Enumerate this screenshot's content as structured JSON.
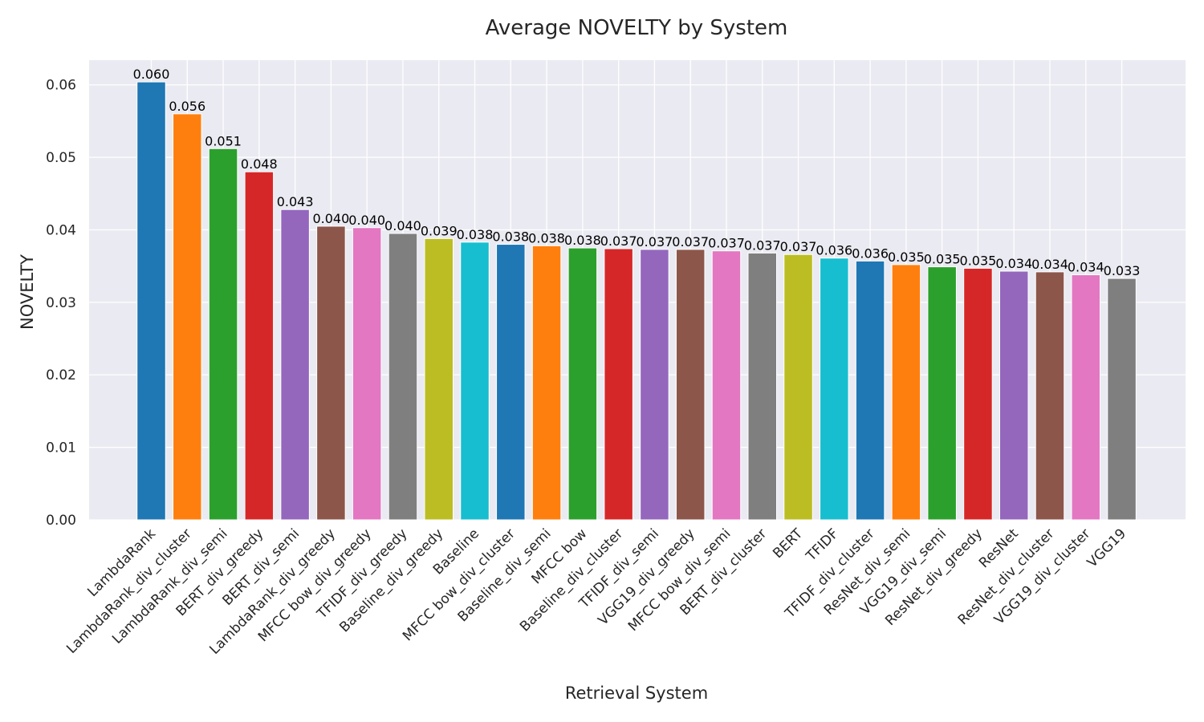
{
  "chart_data": {
    "type": "bar",
    "title": "Average NOVELTY by System",
    "xlabel": "Retrieval System",
    "ylabel": "NOVELTY",
    "ylim": [
      0,
      0.0634
    ],
    "yticks": [
      "0.00",
      "0.01",
      "0.02",
      "0.03",
      "0.04",
      "0.05",
      "0.06"
    ],
    "grid": true,
    "legend": "none",
    "categories": [
      "LambdaRank",
      "LambdaRank_div_cluster",
      "LambdaRank_div_semi",
      "BERT_div_greedy",
      "BERT_div_semi",
      "LambdaRank_div_greedy",
      "MFCC bow_div_greedy",
      "TFIDF_div_greedy",
      "Baseline_div_greedy",
      "Baseline",
      "MFCC bow_div_cluster",
      "Baseline_div_semi",
      "MFCC bow",
      "Baseline_div_cluster",
      "TFIDF_div_semi",
      "VGG19_div_greedy",
      "MFCC bow_div_semi",
      "BERT_div_cluster",
      "BERT",
      "TFIDF",
      "TFIDF_div_cluster",
      "ResNet_div_semi",
      "VGG19_div_semi",
      "ResNet_div_greedy",
      "ResNet",
      "ResNet_div_cluster",
      "VGG19_div_cluster",
      "VGG19"
    ],
    "values": [
      0.0604,
      0.056,
      0.0512,
      0.048,
      0.0428,
      0.0405,
      0.0403,
      0.0395,
      0.0388,
      0.0383,
      0.038,
      0.0378,
      0.0375,
      0.0374,
      0.0373,
      0.0373,
      0.0371,
      0.0368,
      0.0366,
      0.0361,
      0.0357,
      0.0352,
      0.0349,
      0.0347,
      0.0343,
      0.0342,
      0.0338,
      0.0333
    ],
    "data_labels": [
      "0.060",
      "0.056",
      "0.051",
      "0.048",
      "0.043",
      "0.040",
      "0.040",
      "0.040",
      "0.039",
      "0.038",
      "0.038",
      "0.038",
      "0.038",
      "0.037",
      "0.037",
      "0.037",
      "0.037",
      "0.037",
      "0.037",
      "0.036",
      "0.036",
      "0.035",
      "0.035",
      "0.035",
      "0.034",
      "0.034",
      "0.034",
      "0.033"
    ],
    "colors": {
      "background": "#eaeaf2",
      "grid": "#ffffff",
      "bar_cycle": [
        "#1f77b4",
        "#ff7f0e",
        "#2ca02c",
        "#d62728",
        "#9467bd",
        "#8c564b",
        "#e377c2",
        "#7f7f7f",
        "#bcbd22",
        "#17becf"
      ]
    }
  }
}
